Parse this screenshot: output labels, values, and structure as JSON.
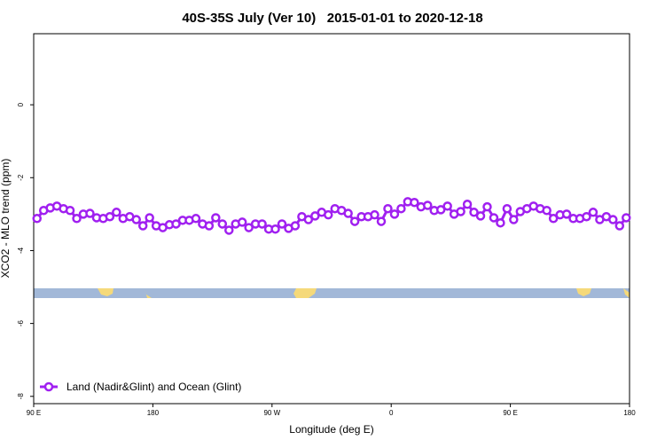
{
  "chart_data": {
    "type": "line",
    "title": "40S-35S July (Ver 10)   2015-01-01 to 2020-12-18",
    "x_label": "Longitude (deg E)",
    "y_label": "XCO2 - MLO trend (ppm)",
    "xlim": [
      90,
      540
    ],
    "ylim": [
      -8.2,
      1.95
    ],
    "xticks": [
      {
        "value": 90,
        "label": "90 E"
      },
      {
        "value": 180,
        "label": "180"
      },
      {
        "value": 270,
        "label": "90 W"
      },
      {
        "value": 360,
        "label": "0"
      },
      {
        "value": 450,
        "label": "90 E"
      },
      {
        "value": 540,
        "label": "180"
      }
    ],
    "yticks": [
      0,
      -2,
      -4,
      -6,
      -8
    ],
    "legend": "bottom-left",
    "x": [
      92.5,
      97.5,
      102.5,
      107.5,
      112.5,
      117.5,
      122.5,
      127.5,
      132.5,
      137.5,
      142.5,
      147.5,
      152.5,
      157.5,
      162.5,
      167.5,
      172.5,
      177.5,
      182.5,
      187.5,
      192.5,
      197.5,
      202.5,
      207.5,
      212.5,
      217.5,
      222.5,
      227.5,
      232.5,
      237.5,
      242.5,
      247.5,
      252.5,
      257.5,
      262.5,
      267.5,
      272.5,
      277.5,
      282.5,
      287.5,
      292.5,
      297.5,
      302.5,
      307.5,
      312.5,
      317.5,
      322.5,
      327.5,
      332.5,
      337.5,
      342.5,
      347.5,
      352.5,
      357.5,
      362.5,
      367.5,
      372.5,
      377.5,
      382.5,
      387.5,
      392.5,
      397.5,
      402.5,
      407.5,
      412.5,
      417.5,
      422.5,
      427.5,
      432.5,
      437.5,
      442.5,
      447.5,
      452.5,
      457.5,
      462.5,
      467.5,
      472.5,
      477.5,
      482.5,
      487.5,
      492.5,
      497.5,
      502.5,
      507.5,
      512.5,
      517.5,
      522.5,
      527.5,
      532.5,
      537.5
    ],
    "series": [
      {
        "name": "Land (Nadir&Glint) and Ocean (Glint)",
        "color": "#a020f0",
        "values": [
          -3.12,
          -2.9,
          -2.83,
          -2.78,
          -2.85,
          -2.9,
          -3.12,
          -3.0,
          -2.98,
          -3.1,
          -3.12,
          -3.07,
          -2.95,
          -3.12,
          -3.07,
          -3.15,
          -3.32,
          -3.1,
          -3.32,
          -3.37,
          -3.29,
          -3.27,
          -3.17,
          -3.17,
          -3.12,
          -3.27,
          -3.32,
          -3.1,
          -3.27,
          -3.44,
          -3.27,
          -3.22,
          -3.37,
          -3.27,
          -3.27,
          -3.41,
          -3.41,
          -3.27,
          -3.39,
          -3.32,
          -3.07,
          -3.15,
          -3.05,
          -2.95,
          -3.02,
          -2.85,
          -2.9,
          -2.98,
          -3.2,
          -3.07,
          -3.07,
          -3.02,
          -3.2,
          -2.85,
          -3.0,
          -2.85,
          -2.66,
          -2.68,
          -2.8,
          -2.76,
          -2.9,
          -2.88,
          -2.78,
          -3.0,
          -2.93,
          -2.73,
          -2.95,
          -3.05,
          -2.8,
          -3.1,
          -3.24,
          -2.85,
          -3.15,
          -2.93,
          -2.85,
          -2.78,
          -2.85,
          -2.9,
          -3.12,
          -3.02,
          -3.0,
          -3.12,
          -3.12,
          -3.07,
          -2.95,
          -3.15,
          -3.07,
          -3.15,
          -3.32,
          -3.1
        ]
      }
    ]
  }
}
